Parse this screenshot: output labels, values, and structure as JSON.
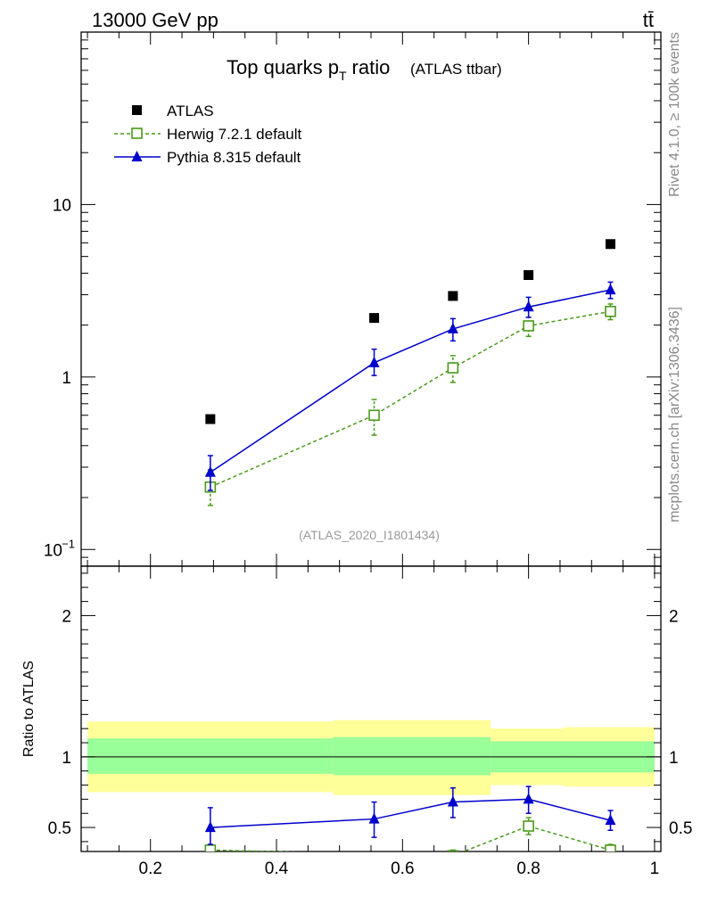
{
  "header": {
    "energy": "13000 GeV pp",
    "process": "tt̄"
  },
  "side_text": {
    "rivet": "Rivet 4.1.0, ≥ 100k events",
    "source": "mcplots.cern.ch [arXiv:1306.3436]"
  },
  "colors": {
    "atlas": "#000000",
    "herwig": "#4a9a1a",
    "pythia": "#0000cc",
    "band_outer": "#ffff99",
    "band_inner": "#99ff99",
    "watermark": "#999999"
  },
  "chart_data": [
    {
      "type": "scatter",
      "title": "Top quarks p",
      "title_sub": "T",
      "title_suffix": "ratio",
      "title_note": "(ATLAS ttbar)",
      "watermark": "(ATLAS_2020_I1801434)",
      "yscale": "log",
      "xlim": [
        0.09,
        1.01
      ],
      "ylim": [
        0.08,
        100
      ],
      "ytick_labels": [
        {
          "value": 10,
          "label": "10"
        },
        {
          "value": 1,
          "label": "1"
        },
        {
          "value": 0.1,
          "label": "10",
          "exp": "−1"
        }
      ],
      "legend": [
        "ATLAS",
        "Herwig 7.2.1 default",
        "Pythia 8.315 default"
      ],
      "series": [
        {
          "name": "ATLAS",
          "style": "marker",
          "x": [
            0.295,
            0.555,
            0.68,
            0.8,
            0.93
          ],
          "y": [
            0.57,
            2.2,
            2.95,
            3.9,
            5.9
          ]
        },
        {
          "name": "Herwig 7.2.1 default",
          "style": "dashed",
          "x": [
            0.295,
            0.555,
            0.68,
            0.8,
            0.93
          ],
          "y": [
            0.23,
            0.6,
            1.13,
            1.98,
            2.4
          ],
          "err_lo": [
            0.18,
            0.46,
            0.93,
            1.72,
            2.15
          ],
          "err_hi": [
            0.29,
            0.74,
            1.33,
            2.22,
            2.65
          ]
        },
        {
          "name": "Pythia 8.315 default",
          "style": "solid",
          "x": [
            0.295,
            0.555,
            0.68,
            0.8,
            0.93
          ],
          "y": [
            0.28,
            1.21,
            1.9,
            2.55,
            3.2
          ],
          "err_lo": [
            0.22,
            1.02,
            1.62,
            2.22,
            2.85
          ],
          "err_hi": [
            0.35,
            1.45,
            2.18,
            2.9,
            3.55
          ]
        }
      ]
    },
    {
      "type": "scatter",
      "ylabel": "Ratio to ATLAS",
      "xlim": [
        0.09,
        1.01
      ],
      "ylim": [
        0.33,
        2.35
      ],
      "xticks": [
        0.2,
        0.4,
        0.6,
        0.8,
        1
      ],
      "xtick_labels": [
        "0.2",
        "0.4",
        "0.6",
        "0.8",
        "1"
      ],
      "yticks": [
        0.5,
        1,
        2
      ],
      "ytick_labels": [
        "0.5",
        "1",
        "2"
      ],
      "bands": [
        {
          "x0": 0.1,
          "x1": 0.49,
          "inner": [
            0.88,
            1.13
          ],
          "outer": [
            0.75,
            1.25
          ]
        },
        {
          "x0": 0.49,
          "x1": 0.74,
          "inner": [
            0.87,
            1.14
          ],
          "outer": [
            0.73,
            1.26
          ]
        },
        {
          "x0": 0.74,
          "x1": 0.855,
          "inner": [
            0.89,
            1.11
          ],
          "outer": [
            0.8,
            1.2
          ]
        },
        {
          "x0": 0.855,
          "x1": 1.0,
          "inner": [
            0.89,
            1.11
          ],
          "outer": [
            0.79,
            1.21
          ]
        }
      ],
      "series": [
        {
          "name": "Herwig 7.2.1 default",
          "style": "dashed",
          "x": [
            0.295,
            0.68,
            0.8,
            0.93
          ],
          "y": [
            0.34,
            0.3,
            0.51,
            0.34
          ],
          "err_lo": [
            0.3,
            0.26,
            0.45,
            0.31
          ],
          "err_hi": [
            0.38,
            0.34,
            0.57,
            0.38
          ]
        },
        {
          "name": "Pythia 8.315 default",
          "style": "solid",
          "x": [
            0.295,
            0.555,
            0.68,
            0.8,
            0.93
          ],
          "y": [
            0.5,
            0.56,
            0.68,
            0.7,
            0.55
          ],
          "err_lo": [
            0.38,
            0.43,
            0.57,
            0.6,
            0.48
          ],
          "err_hi": [
            0.64,
            0.68,
            0.78,
            0.79,
            0.62
          ]
        }
      ]
    }
  ]
}
